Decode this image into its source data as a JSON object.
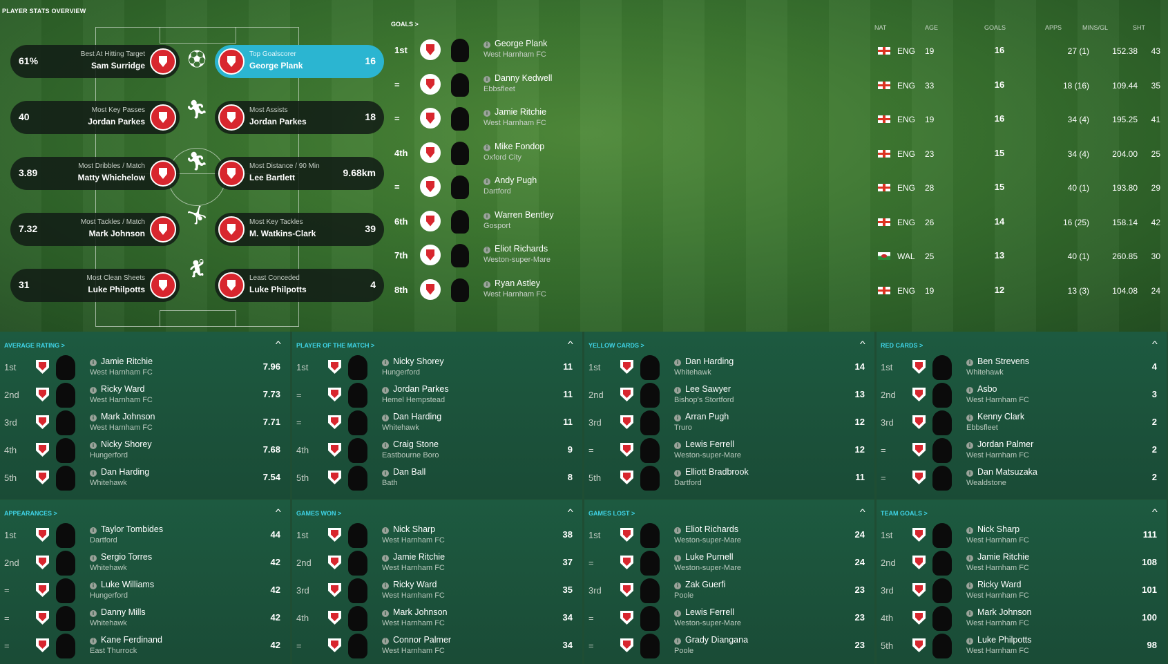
{
  "page_title": "PLAYER STATS OVERVIEW",
  "top_stats": [
    {
      "side": "left",
      "value": "61%",
      "label": "Best At Hitting Target",
      "name": "Sam Surridge"
    },
    {
      "side": "right",
      "value": "16",
      "label": "Top Goalscorer",
      "name": "George Plank",
      "highlight": true
    },
    {
      "side": "left",
      "value": "40",
      "label": "Most Key Passes",
      "name": "Jordan Parkes"
    },
    {
      "side": "right",
      "value": "18",
      "label": "Most Assists",
      "name": "Jordan Parkes"
    },
    {
      "side": "left",
      "value": "3.89",
      "label": "Most Dribbles / Match",
      "name": "Matty Whichelow"
    },
    {
      "side": "right",
      "value": "9.68km",
      "label": "Most Distance / 90 Min",
      "name": "Lee Bartlett"
    },
    {
      "side": "left",
      "value": "7.32",
      "label": "Most Tackles / Match",
      "name": "Mark Johnson"
    },
    {
      "side": "right",
      "value": "39",
      "label": "Most Key Tackles",
      "name": "M. Watkins-Clark"
    },
    {
      "side": "left",
      "value": "31",
      "label": "Most Clean Sheets",
      "name": "Luke Philpotts"
    },
    {
      "side": "right",
      "value": "4",
      "label": "Least Conceded",
      "name": "Luke Philpotts"
    }
  ],
  "goals": {
    "title": "GOALS >",
    "columns": {
      "nat": "NAT",
      "age": "AGE",
      "goals": "GOALS",
      "apps": "APPS",
      "mins": "MINS/GL",
      "sht": "SHT"
    },
    "rows": [
      {
        "rank": "1st",
        "name": "George Plank",
        "club": "West Harnham FC",
        "nat": "ENG",
        "age": "19",
        "goals": "16",
        "apps": "27 (1)",
        "mins": "152.38",
        "sht": "43"
      },
      {
        "rank": "=",
        "name": "Danny Kedwell",
        "club": "Ebbsfleet",
        "nat": "ENG",
        "age": "33",
        "goals": "16",
        "apps": "18 (16)",
        "mins": "109.44",
        "sht": "35"
      },
      {
        "rank": "=",
        "name": "Jamie Ritchie",
        "club": "West Harnham FC",
        "nat": "ENG",
        "age": "19",
        "goals": "16",
        "apps": "34 (4)",
        "mins": "195.25",
        "sht": "41"
      },
      {
        "rank": "4th",
        "name": "Mike Fondop",
        "club": "Oxford City",
        "nat": "ENG",
        "age": "23",
        "goals": "15",
        "apps": "34 (4)",
        "mins": "204.00",
        "sht": "25"
      },
      {
        "rank": "=",
        "name": "Andy Pugh",
        "club": "Dartford",
        "nat": "ENG",
        "age": "28",
        "goals": "15",
        "apps": "40 (1)",
        "mins": "193.80",
        "sht": "29"
      },
      {
        "rank": "6th",
        "name": "Warren Bentley",
        "club": "Gosport",
        "nat": "ENG",
        "age": "26",
        "goals": "14",
        "apps": "16 (25)",
        "mins": "158.14",
        "sht": "42"
      },
      {
        "rank": "7th",
        "name": "Eliot Richards",
        "club": "Weston-super-Mare",
        "nat": "WAL",
        "age": "25",
        "goals": "13",
        "apps": "40 (1)",
        "mins": "260.85",
        "sht": "30"
      },
      {
        "rank": "8th",
        "name": "Ryan Astley",
        "club": "West Harnham FC",
        "nat": "ENG",
        "age": "19",
        "goals": "12",
        "apps": "13 (3)",
        "mins": "104.08",
        "sht": "24"
      }
    ]
  },
  "panels": [
    {
      "title": "AVERAGE RATING >",
      "rows": [
        {
          "rank": "1st",
          "name": "Jamie Ritchie",
          "club": "West Harnham FC",
          "value": "7.96"
        },
        {
          "rank": "2nd",
          "name": "Ricky Ward",
          "club": "West Harnham FC",
          "value": "7.73"
        },
        {
          "rank": "3rd",
          "name": "Mark Johnson",
          "club": "West Harnham FC",
          "value": "7.71"
        },
        {
          "rank": "4th",
          "name": "Nicky Shorey",
          "club": "Hungerford",
          "value": "7.68"
        },
        {
          "rank": "5th",
          "name": "Dan Harding",
          "club": "Whitehawk",
          "value": "7.54"
        }
      ]
    },
    {
      "title": "PLAYER OF THE MATCH >",
      "rows": [
        {
          "rank": "1st",
          "name": "Nicky Shorey",
          "club": "Hungerford",
          "value": "11"
        },
        {
          "rank": "=",
          "name": "Jordan Parkes",
          "club": "Hemel Hempstead",
          "value": "11"
        },
        {
          "rank": "=",
          "name": "Dan Harding",
          "club": "Whitehawk",
          "value": "11"
        },
        {
          "rank": "4th",
          "name": "Craig Stone",
          "club": "Eastbourne Boro",
          "value": "9"
        },
        {
          "rank": "5th",
          "name": "Dan Ball",
          "club": "Bath",
          "value": "8"
        }
      ]
    },
    {
      "title": "YELLOW CARDS >",
      "rows": [
        {
          "rank": "1st",
          "name": "Dan Harding",
          "club": "Whitehawk",
          "value": "14"
        },
        {
          "rank": "2nd",
          "name": "Lee Sawyer",
          "club": "Bishop's Stortford",
          "value": "13"
        },
        {
          "rank": "3rd",
          "name": "Arran Pugh",
          "club": "Truro",
          "value": "12"
        },
        {
          "rank": "=",
          "name": "Lewis Ferrell",
          "club": "Weston-super-Mare",
          "value": "12"
        },
        {
          "rank": "5th",
          "name": "Elliott Bradbrook",
          "club": "Dartford",
          "value": "11"
        }
      ]
    },
    {
      "title": "RED CARDS >",
      "rows": [
        {
          "rank": "1st",
          "name": "Ben Strevens",
          "club": "Whitehawk",
          "value": "4"
        },
        {
          "rank": "2nd",
          "name": "Asbo",
          "club": "West Harnham FC",
          "value": "3"
        },
        {
          "rank": "3rd",
          "name": "Kenny Clark",
          "club": "Ebbsfleet",
          "value": "2"
        },
        {
          "rank": "=",
          "name": "Jordan Palmer",
          "club": "West Harnham FC",
          "value": "2"
        },
        {
          "rank": "=",
          "name": "Dan Matsuzaka",
          "club": "Wealdstone",
          "value": "2"
        }
      ]
    },
    {
      "title": "APPEARANCES >",
      "rows": [
        {
          "rank": "1st",
          "name": "Taylor Tombides",
          "club": "Dartford",
          "value": "44"
        },
        {
          "rank": "2nd",
          "name": "Sergio Torres",
          "club": "Whitehawk",
          "value": "42"
        },
        {
          "rank": "=",
          "name": "Luke Williams",
          "club": "Hungerford",
          "value": "42"
        },
        {
          "rank": "=",
          "name": "Danny Mills",
          "club": "Whitehawk",
          "value": "42"
        },
        {
          "rank": "=",
          "name": "Kane Ferdinand",
          "club": "East Thurrock",
          "value": "42"
        }
      ]
    },
    {
      "title": "GAMES WON >",
      "rows": [
        {
          "rank": "1st",
          "name": "Nick Sharp",
          "club": "West Harnham FC",
          "value": "38"
        },
        {
          "rank": "2nd",
          "name": "Jamie Ritchie",
          "club": "West Harnham FC",
          "value": "37"
        },
        {
          "rank": "3rd",
          "name": "Ricky Ward",
          "club": "West Harnham FC",
          "value": "35"
        },
        {
          "rank": "4th",
          "name": "Mark Johnson",
          "club": "West Harnham FC",
          "value": "34"
        },
        {
          "rank": "=",
          "name": "Connor Palmer",
          "club": "West Harnham FC",
          "value": "34"
        }
      ]
    },
    {
      "title": "GAMES LOST >",
      "rows": [
        {
          "rank": "1st",
          "name": "Eliot Richards",
          "club": "Weston-super-Mare",
          "value": "24"
        },
        {
          "rank": "=",
          "name": "Luke Purnell",
          "club": "Weston-super-Mare",
          "value": "24"
        },
        {
          "rank": "3rd",
          "name": "Zak Guerfi",
          "club": "Poole",
          "value": "23"
        },
        {
          "rank": "=",
          "name": "Lewis Ferrell",
          "club": "Weston-super-Mare",
          "value": "23"
        },
        {
          "rank": "=",
          "name": "Grady Diangana",
          "club": "Poole",
          "value": "23"
        }
      ]
    },
    {
      "title": "TEAM GOALS >",
      "rows": [
        {
          "rank": "1st",
          "name": "Nick Sharp",
          "club": "West Harnham FC",
          "value": "111"
        },
        {
          "rank": "2nd",
          "name": "Jamie Ritchie",
          "club": "West Harnham FC",
          "value": "108"
        },
        {
          "rank": "3rd",
          "name": "Ricky Ward",
          "club": "West Harnham FC",
          "value": "101"
        },
        {
          "rank": "4th",
          "name": "Mark Johnson",
          "club": "West Harnham FC",
          "value": "100"
        },
        {
          "rank": "5th",
          "name": "Luke Philpotts",
          "club": "West Harnham FC",
          "value": "98"
        }
      ]
    }
  ],
  "icons": {
    "panel_toggle": "chevron-up-icon",
    "info": "info-icon"
  }
}
